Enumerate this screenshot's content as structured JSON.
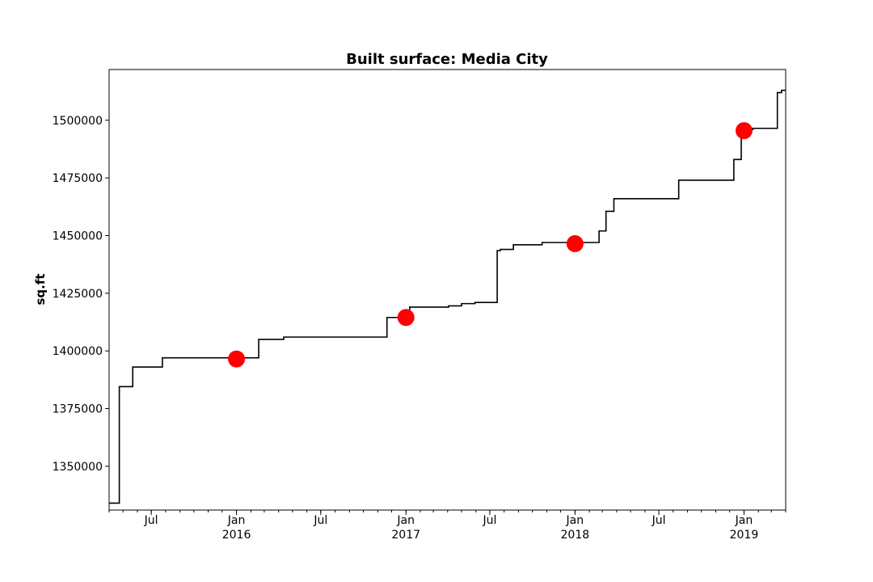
{
  "chart_data": {
    "type": "line",
    "title": "Built surface: Media City",
    "xlabel": "",
    "ylabel": "sq.ft",
    "xlim": [
      "2015-04-01",
      "2019-04-01"
    ],
    "ylim": [
      1331000,
      1522000
    ],
    "grid": false,
    "yticks": [
      1350000,
      1375000,
      1400000,
      1425000,
      1450000,
      1475000,
      1500000
    ],
    "ytick_labels": [
      "1350000",
      "1375000",
      "1400000",
      "1425000",
      "1450000",
      "1475000",
      "1500000"
    ],
    "xticks": [
      {
        "date": "2015-07-01",
        "label": "Jul",
        "sublabel": ""
      },
      {
        "date": "2016-01-01",
        "label": "Jan",
        "sublabel": "2016"
      },
      {
        "date": "2016-07-01",
        "label": "Jul",
        "sublabel": ""
      },
      {
        "date": "2017-01-01",
        "label": "Jan",
        "sublabel": "2017"
      },
      {
        "date": "2017-07-01",
        "label": "Jul",
        "sublabel": ""
      },
      {
        "date": "2018-01-01",
        "label": "Jan",
        "sublabel": "2018"
      },
      {
        "date": "2018-07-01",
        "label": "Jul",
        "sublabel": ""
      },
      {
        "date": "2019-01-01",
        "label": "Jan",
        "sublabel": "2019"
      }
    ],
    "series": [
      {
        "color": "#000000",
        "drawstyle": "steps-post",
        "points": [
          {
            "x": "2015-04-01",
            "y": 1334000
          },
          {
            "x": "2015-04-23",
            "y": 1384500
          },
          {
            "x": "2015-05-22",
            "y": 1393000
          },
          {
            "x": "2015-07-25",
            "y": 1397000
          },
          {
            "x": "2016-02-18",
            "y": 1405000
          },
          {
            "x": "2016-04-12",
            "y": 1406000
          },
          {
            "x": "2016-11-21",
            "y": 1414500
          },
          {
            "x": "2017-01-09",
            "y": 1419000
          },
          {
            "x": "2017-04-03",
            "y": 1419500
          },
          {
            "x": "2017-05-01",
            "y": 1420500
          },
          {
            "x": "2017-05-30",
            "y": 1421000
          },
          {
            "x": "2017-07-17",
            "y": 1443500
          },
          {
            "x": "2017-07-24",
            "y": 1444000
          },
          {
            "x": "2017-08-21",
            "y": 1446000
          },
          {
            "x": "2017-10-22",
            "y": 1447000
          },
          {
            "x": "2018-02-22",
            "y": 1452000
          },
          {
            "x": "2018-03-09",
            "y": 1460500
          },
          {
            "x": "2018-03-26",
            "y": 1466000
          },
          {
            "x": "2018-08-13",
            "y": 1474000
          },
          {
            "x": "2018-12-10",
            "y": 1483000
          },
          {
            "x": "2018-12-26",
            "y": 1496000
          },
          {
            "x": "2019-01-20",
            "y": 1496500
          },
          {
            "x": "2019-03-14",
            "y": 1512000
          },
          {
            "x": "2019-03-23",
            "y": 1513000
          },
          {
            "x": "2019-04-01",
            "y": 1513000
          }
        ]
      },
      {
        "color": "#ff0000",
        "type": "scatter",
        "points": [
          {
            "x": "2016-01-01",
            "y": 1396500
          },
          {
            "x": "2017-01-01",
            "y": 1414500
          },
          {
            "x": "2018-01-01",
            "y": 1446500
          },
          {
            "x": "2019-01-01",
            "y": 1495500
          }
        ]
      }
    ]
  }
}
